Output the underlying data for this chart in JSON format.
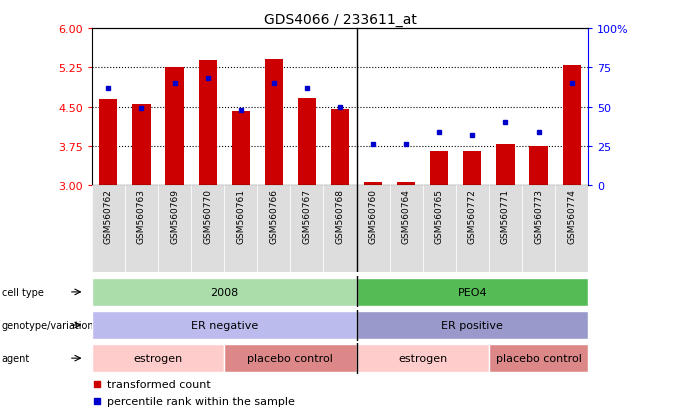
{
  "title": "GDS4066 / 233611_at",
  "samples": [
    "GSM560762",
    "GSM560763",
    "GSM560769",
    "GSM560770",
    "GSM560761",
    "GSM560766",
    "GSM560767",
    "GSM560768",
    "GSM560760",
    "GSM560764",
    "GSM560765",
    "GSM560772",
    "GSM560771",
    "GSM560773",
    "GSM560774"
  ],
  "bar_values": [
    4.65,
    4.55,
    5.25,
    5.38,
    4.42,
    5.4,
    4.67,
    4.45,
    3.07,
    3.07,
    3.65,
    3.65,
    3.79,
    3.74,
    5.3
  ],
  "dot_percentiles": [
    62,
    49,
    65,
    68,
    48,
    65,
    62,
    50,
    26,
    26,
    34,
    32,
    40,
    34,
    65
  ],
  "bar_color": "#cc0000",
  "dot_color": "#0000cc",
  "ylim_left": [
    3,
    6
  ],
  "ylim_right": [
    0,
    100
  ],
  "yticks_left": [
    3,
    3.75,
    4.5,
    5.25,
    6
  ],
  "yticks_right": [
    0,
    25,
    50,
    75,
    100
  ],
  "yticklabels_right": [
    "0",
    "25",
    "50",
    "75",
    "100%"
  ],
  "cell_type_groups": [
    {
      "label": "2008",
      "start": 0,
      "end": 7,
      "color": "#aaddaa"
    },
    {
      "label": "PEO4",
      "start": 8,
      "end": 14,
      "color": "#55bb55"
    }
  ],
  "genotype_groups": [
    {
      "label": "ER negative",
      "start": 0,
      "end": 7,
      "color": "#bbbbee"
    },
    {
      "label": "ER positive",
      "start": 8,
      "end": 14,
      "color": "#9999cc"
    }
  ],
  "agent_groups": [
    {
      "label": "estrogen",
      "start": 0,
      "end": 3,
      "color": "#ffcccc"
    },
    {
      "label": "placebo control",
      "start": 4,
      "end": 7,
      "color": "#dd8888"
    },
    {
      "label": "estrogen",
      "start": 8,
      "end": 11,
      "color": "#ffcccc"
    },
    {
      "label": "placebo control",
      "start": 12,
      "end": 14,
      "color": "#dd8888"
    }
  ],
  "bar_bottom": 3.0,
  "bar_width": 0.55,
  "background_color": "#ffffff",
  "xtick_bg_color": "#dddddd",
  "sep_index": 7.5
}
